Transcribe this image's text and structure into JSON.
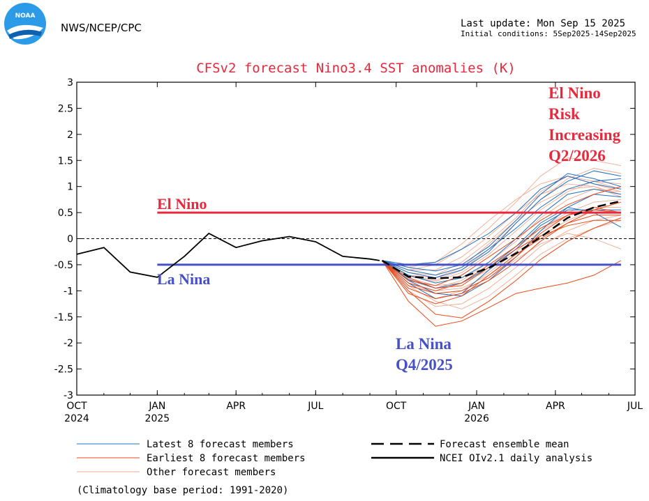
{
  "header": {
    "agency": "NWS/NCEP/CPC",
    "logo_text": "NOAA",
    "last_update": "Last update: Mon Sep 15 2025",
    "initial_conditions": "Initial conditions: 5Sep2025-14Sep2025"
  },
  "chart_data": {
    "type": "line",
    "title": "CFSv2 forecast Nino3.4 SST anomalies (K)",
    "ylim": [
      -3,
      3
    ],
    "xlim": [
      "2024-10",
      "2026-07"
    ],
    "yticks": [
      -3,
      -2.5,
      -2,
      -1.5,
      -1,
      -0.5,
      0,
      0.5,
      1,
      1.5,
      2,
      2.5,
      3
    ],
    "ytick_labels": [
      "-3",
      "-2.5",
      "-2",
      "-1.5",
      "-1",
      "-0.5",
      "0",
      "0.5",
      "1",
      "1.5",
      "2",
      "2.5",
      "3"
    ],
    "xticks": [
      {
        "date": "2024-10",
        "label": "OCT",
        "year": "2024"
      },
      {
        "date": "2025-01",
        "label": "JAN",
        "year": "2025"
      },
      {
        "date": "2025-04",
        "label": "APR",
        "year": ""
      },
      {
        "date": "2025-07",
        "label": "JUL",
        "year": ""
      },
      {
        "date": "2025-10",
        "label": "OCT",
        "year": ""
      },
      {
        "date": "2026-01",
        "label": "JAN",
        "year": "2026"
      },
      {
        "date": "2026-04",
        "label": "APR",
        "year": ""
      },
      {
        "date": "2026-07",
        "label": "JUL",
        "year": ""
      }
    ],
    "thresholds": [
      {
        "name": "El Nino",
        "value": 0.5,
        "from": "2025-01",
        "to": "2026-06-15",
        "color": "#e8283c"
      },
      {
        "name": "La Nina",
        "value": -0.5,
        "from": "2025-01",
        "to": "2026-06-15",
        "color": "#4650c8"
      }
    ],
    "annotations": [
      {
        "lines": [
          "El Nino"
        ],
        "color": "#e8283c"
      },
      {
        "lines": [
          "La Nina"
        ],
        "color": "#4650c8"
      },
      {
        "lines": [
          "El Nino",
          "Risk",
          "Increasing",
          "Q2/2026"
        ],
        "color": "#e8283c"
      },
      {
        "lines": [
          "La Nina",
          "Q4/2025"
        ],
        "color": "#4650c8"
      }
    ],
    "observed": {
      "name": "NCEI OIv2.1 daily analysis",
      "color": "#000000",
      "x": [
        "2024-10-01",
        "2024-11-01",
        "2024-12-01",
        "2025-01-01",
        "2025-02-01",
        "2025-03-01",
        "2025-04-01",
        "2025-05-01",
        "2025-06-01",
        "2025-07-01",
        "2025-08-01",
        "2025-09-01",
        "2025-09-12"
      ],
      "y": [
        -0.3,
        -0.17,
        -0.64,
        -0.74,
        -0.34,
        0.1,
        -0.17,
        -0.04,
        0.04,
        -0.06,
        -0.34,
        -0.39,
        -0.42
      ]
    },
    "forecast_x": [
      "2025-09-15",
      "2025-10-15",
      "2025-11-15",
      "2025-12-15",
      "2026-01-15",
      "2026-02-15",
      "2026-03-15",
      "2026-04-15",
      "2026-05-15",
      "2026-06-15"
    ],
    "ensemble_mean": {
      "name": "Forecast ensemble mean",
      "color": "#000000",
      "y": [
        -0.42,
        -0.73,
        -0.76,
        -0.74,
        -0.56,
        -0.28,
        0.03,
        0.4,
        0.6,
        0.72
      ]
    },
    "members": {
      "latest": {
        "name": "Latest 8 forecast members",
        "color": "#1f6fc0",
        "series": [
          [
            -0.42,
            -0.55,
            -0.62,
            -0.5,
            -0.15,
            0.35,
            0.85,
            1.25,
            1.15,
            1.0
          ],
          [
            -0.42,
            -0.8,
            -1.05,
            -1.1,
            -0.8,
            -0.35,
            0.15,
            0.6,
            0.85,
            0.8
          ],
          [
            -0.42,
            -0.65,
            -0.75,
            -0.6,
            -0.25,
            0.3,
            0.75,
            1.1,
            1.3,
            1.2
          ],
          [
            -0.42,
            -0.78,
            -0.95,
            -0.85,
            -0.55,
            -0.15,
            0.3,
            0.6,
            0.5,
            0.22
          ],
          [
            -0.42,
            -0.5,
            -0.45,
            -0.2,
            0.1,
            0.5,
            0.95,
            1.2,
            1.05,
            0.95
          ],
          [
            -0.42,
            -0.7,
            -0.85,
            -0.75,
            -0.45,
            0.0,
            0.45,
            0.85,
            0.95,
            0.85
          ],
          [
            -0.42,
            -0.85,
            -1.15,
            -1.05,
            -0.6,
            -0.2,
            0.25,
            0.55,
            0.55,
            0.55
          ],
          [
            -0.42,
            -0.6,
            -0.7,
            -0.55,
            -0.2,
            0.2,
            0.6,
            0.95,
            1.1,
            1.15
          ]
        ]
      },
      "earliest": {
        "name": "Earliest 8 forecast members",
        "color": "#e84a1a",
        "series": [
          [
            -0.42,
            -1.2,
            -1.68,
            -1.58,
            -1.32,
            -1.05,
            -0.95,
            -0.85,
            -0.7,
            -0.42
          ],
          [
            -0.42,
            -1.0,
            -1.45,
            -1.52,
            -1.2,
            -0.8,
            -0.4,
            -0.05,
            0.2,
            0.4
          ],
          [
            -0.42,
            -0.9,
            -1.05,
            -1.0,
            -0.75,
            -0.35,
            0.1,
            0.45,
            0.6,
            0.5
          ],
          [
            -0.42,
            -0.85,
            -1.0,
            -0.85,
            -0.5,
            -0.15,
            0.2,
            0.45,
            0.55,
            0.5
          ],
          [
            -0.42,
            -0.95,
            -1.15,
            -1.05,
            -0.8,
            -0.45,
            -0.05,
            0.3,
            0.55,
            0.7
          ],
          [
            -0.42,
            -0.8,
            -0.9,
            -0.7,
            -0.35,
            0.0,
            0.35,
            0.65,
            0.85,
            1.0
          ],
          [
            -0.42,
            -0.75,
            -0.95,
            -0.9,
            -0.55,
            -0.2,
            0.05,
            0.25,
            0.35,
            0.35
          ],
          [
            -0.42,
            -1.05,
            -1.25,
            -1.1,
            -0.7,
            -0.3,
            0.0,
            0.3,
            0.45,
            0.45
          ]
        ]
      },
      "other": {
        "name": "Other forecast members",
        "color": "#f0a890",
        "series": [
          [
            -0.42,
            -0.6,
            -0.5,
            -0.2,
            0.2,
            0.7,
            1.2,
            1.55,
            1.5,
            1.4
          ],
          [
            -0.42,
            -0.7,
            -0.8,
            -0.6,
            -0.2,
            0.3,
            0.75,
            1.15,
            1.35,
            1.25
          ],
          [
            -0.42,
            -0.85,
            -1.05,
            -1.0,
            -0.75,
            -0.4,
            -0.1,
            0.1,
            0.0,
            -0.2
          ],
          [
            -0.42,
            -0.9,
            -1.2,
            -1.35,
            -1.1,
            -0.7,
            -0.3,
            0.0,
            0.2,
            0.35
          ],
          [
            -0.42,
            -0.65,
            -0.7,
            -0.45,
            -0.05,
            0.4,
            0.9,
            1.2,
            1.1,
            0.95
          ],
          [
            -0.42,
            -0.75,
            -0.9,
            -0.85,
            -0.6,
            -0.2,
            0.2,
            0.5,
            0.7,
            0.75
          ],
          [
            -0.42,
            -0.55,
            -0.45,
            -0.1,
            0.35,
            0.75,
            1.05,
            1.2,
            1.05,
            0.9
          ],
          [
            -0.42,
            -0.8,
            -0.95,
            -0.8,
            -0.45,
            -0.05,
            0.4,
            0.75,
            0.95,
            0.9
          ],
          [
            -0.42,
            -0.95,
            -1.15,
            -1.0,
            -0.65,
            -0.25,
            0.15,
            0.45,
            0.6,
            0.6
          ],
          [
            -0.42,
            -0.7,
            -0.75,
            -0.55,
            -0.1,
            0.35,
            0.7,
            0.95,
            1.0,
            0.85
          ],
          [
            -0.42,
            -0.6,
            -0.6,
            -0.35,
            0.05,
            0.5,
            0.85,
            1.05,
            1.0,
            0.8
          ],
          [
            -0.42,
            -0.85,
            -1.0,
            -0.95,
            -0.7,
            -0.35,
            0.05,
            0.35,
            0.55,
            0.5
          ],
          [
            -0.42,
            -0.72,
            -0.82,
            -0.65,
            -0.3,
            0.15,
            0.55,
            0.9,
            1.1,
            1.05
          ],
          [
            -0.42,
            -1.0,
            -1.3,
            -1.25,
            -0.95,
            -0.55,
            -0.15,
            0.15,
            0.35,
            0.45
          ]
        ]
      }
    },
    "legend": {
      "placement": "bottom",
      "entries": [
        {
          "label": "Latest 8 forecast members",
          "color": "#1f6fc0",
          "style": "solid-thin"
        },
        {
          "label": "Forecast ensemble mean",
          "color": "#000000",
          "style": "dashed-thick"
        },
        {
          "label": "Earliest 8 forecast members",
          "color": "#e84a1a",
          "style": "solid-thin"
        },
        {
          "label": "NCEI OIv2.1 daily analysis",
          "color": "#000000",
          "style": "solid-thick"
        },
        {
          "label": "Other forecast members",
          "color": "#f0a890",
          "style": "solid-thin"
        }
      ],
      "note": "(Climatology base period: 1991-2020)"
    },
    "title_color": "#e8283c"
  }
}
